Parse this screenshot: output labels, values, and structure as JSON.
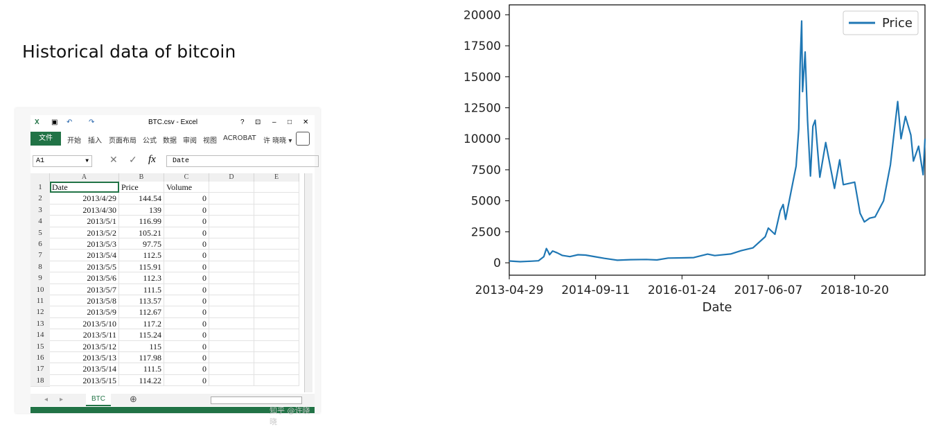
{
  "slide": {
    "title": "Historical data of bitcoin"
  },
  "excel": {
    "window_title": "BTC.csv - Excel",
    "title_help": "?",
    "ribbon_tabs": [
      "文件",
      "开始",
      "插入",
      "页面布局",
      "公式",
      "数据",
      "审阅",
      "视图",
      "ACROBAT",
      "许 晓晓 ▾"
    ],
    "name_box": "A1",
    "formula_value": "Date",
    "columns": [
      "A",
      "B",
      "C",
      "D",
      "E"
    ],
    "rows": [
      {
        "n": "1",
        "a": "Date",
        "b": "Price",
        "c": "Volume"
      },
      {
        "n": "2",
        "a": "2013/4/29",
        "b": "144.54",
        "c": "0"
      },
      {
        "n": "3",
        "a": "2013/4/30",
        "b": "139",
        "c": "0"
      },
      {
        "n": "4",
        "a": "2013/5/1",
        "b": "116.99",
        "c": "0"
      },
      {
        "n": "5",
        "a": "2013/5/2",
        "b": "105.21",
        "c": "0"
      },
      {
        "n": "6",
        "a": "2013/5/3",
        "b": "97.75",
        "c": "0"
      },
      {
        "n": "7",
        "a": "2013/5/4",
        "b": "112.5",
        "c": "0"
      },
      {
        "n": "8",
        "a": "2013/5/5",
        "b": "115.91",
        "c": "0"
      },
      {
        "n": "9",
        "a": "2013/5/6",
        "b": "112.3",
        "c": "0"
      },
      {
        "n": "10",
        "a": "2013/5/7",
        "b": "111.5",
        "c": "0"
      },
      {
        "n": "11",
        "a": "2013/5/8",
        "b": "113.57",
        "c": "0"
      },
      {
        "n": "12",
        "a": "2013/5/9",
        "b": "112.67",
        "c": "0"
      },
      {
        "n": "13",
        "a": "2013/5/10",
        "b": "117.2",
        "c": "0"
      },
      {
        "n": "14",
        "a": "2013/5/11",
        "b": "115.24",
        "c": "0"
      },
      {
        "n": "15",
        "a": "2013/5/12",
        "b": "115",
        "c": "0"
      },
      {
        "n": "16",
        "a": "2013/5/13",
        "b": "117.98",
        "c": "0"
      },
      {
        "n": "17",
        "a": "2013/5/14",
        "b": "111.5",
        "c": "0"
      },
      {
        "n": "18",
        "a": "2013/5/15",
        "b": "114.22",
        "c": "0"
      }
    ],
    "sheet_tab": "BTC",
    "add_sheet": "⊕",
    "watermark": "知乎 @许晓晓"
  },
  "chart_data": {
    "type": "line",
    "title": "",
    "xlabel": "Date",
    "ylabel": "",
    "ylim": [
      -1000,
      20800
    ],
    "yticks": [
      0,
      2500,
      5000,
      7500,
      10000,
      12500,
      15000,
      17500,
      20000
    ],
    "xticks": [
      "2013-04-29",
      "2014-09-11",
      "2016-01-24",
      "2017-06-07",
      "2018-10-20"
    ],
    "xlim": [
      "2013-04-29",
      "2019-12-01"
    ],
    "legend": "top-right",
    "colors": {
      "series": "#1f77b4"
    },
    "series": [
      {
        "name": "Price",
        "points": [
          [
            "2013-04-29",
            145
          ],
          [
            "2013-07-01",
            90
          ],
          [
            "2013-09-01",
            130
          ],
          [
            "2013-10-15",
            160
          ],
          [
            "2013-11-15",
            500
          ],
          [
            "2013-11-30",
            1150
          ],
          [
            "2013-12-10",
            900
          ],
          [
            "2013-12-18",
            650
          ],
          [
            "2014-01-05",
            950
          ],
          [
            "2014-02-01",
            800
          ],
          [
            "2014-03-01",
            600
          ],
          [
            "2014-04-15",
            500
          ],
          [
            "2014-06-01",
            650
          ],
          [
            "2014-07-15",
            620
          ],
          [
            "2014-09-11",
            480
          ],
          [
            "2014-11-01",
            360
          ],
          [
            "2015-01-15",
            210
          ],
          [
            "2015-04-01",
            250
          ],
          [
            "2015-07-01",
            270
          ],
          [
            "2015-09-01",
            230
          ],
          [
            "2015-11-05",
            380
          ],
          [
            "2016-01-24",
            400
          ],
          [
            "2016-04-01",
            420
          ],
          [
            "2016-06-20",
            700
          ],
          [
            "2016-08-01",
            580
          ],
          [
            "2016-11-01",
            710
          ],
          [
            "2017-01-01",
            980
          ],
          [
            "2017-03-10",
            1200
          ],
          [
            "2017-05-20",
            2100
          ],
          [
            "2017-06-07",
            2800
          ],
          [
            "2017-07-15",
            2300
          ],
          [
            "2017-08-15",
            4200
          ],
          [
            "2017-09-01",
            4700
          ],
          [
            "2017-09-15",
            3500
          ],
          [
            "2017-10-20",
            6000
          ],
          [
            "2017-11-15",
            7800
          ],
          [
            "2017-11-30",
            10800
          ],
          [
            "2017-12-08",
            16000
          ],
          [
            "2017-12-17",
            19500
          ],
          [
            "2017-12-22",
            13800
          ],
          [
            "2018-01-06",
            17000
          ],
          [
            "2018-01-20",
            11500
          ],
          [
            "2018-02-06",
            7000
          ],
          [
            "2018-02-20",
            11000
          ],
          [
            "2018-03-05",
            11500
          ],
          [
            "2018-04-01",
            6900
          ],
          [
            "2018-05-05",
            9700
          ],
          [
            "2018-06-25",
            6000
          ],
          [
            "2018-07-25",
            8300
          ],
          [
            "2018-08-15",
            6300
          ],
          [
            "2018-10-20",
            6500
          ],
          [
            "2018-11-20",
            4000
          ],
          [
            "2018-12-15",
            3300
          ],
          [
            "2019-01-15",
            3600
          ],
          [
            "2019-02-15",
            3700
          ],
          [
            "2019-04-05",
            5000
          ],
          [
            "2019-05-15",
            7900
          ],
          [
            "2019-06-26",
            13000
          ],
          [
            "2019-07-15",
            10000
          ],
          [
            "2019-08-10",
            11800
          ],
          [
            "2019-09-10",
            10300
          ],
          [
            "2019-09-25",
            8200
          ],
          [
            "2019-10-25",
            9400
          ],
          [
            "2019-11-20",
            7100
          ],
          [
            "2019-12-01",
            10000
          ]
        ]
      }
    ]
  }
}
